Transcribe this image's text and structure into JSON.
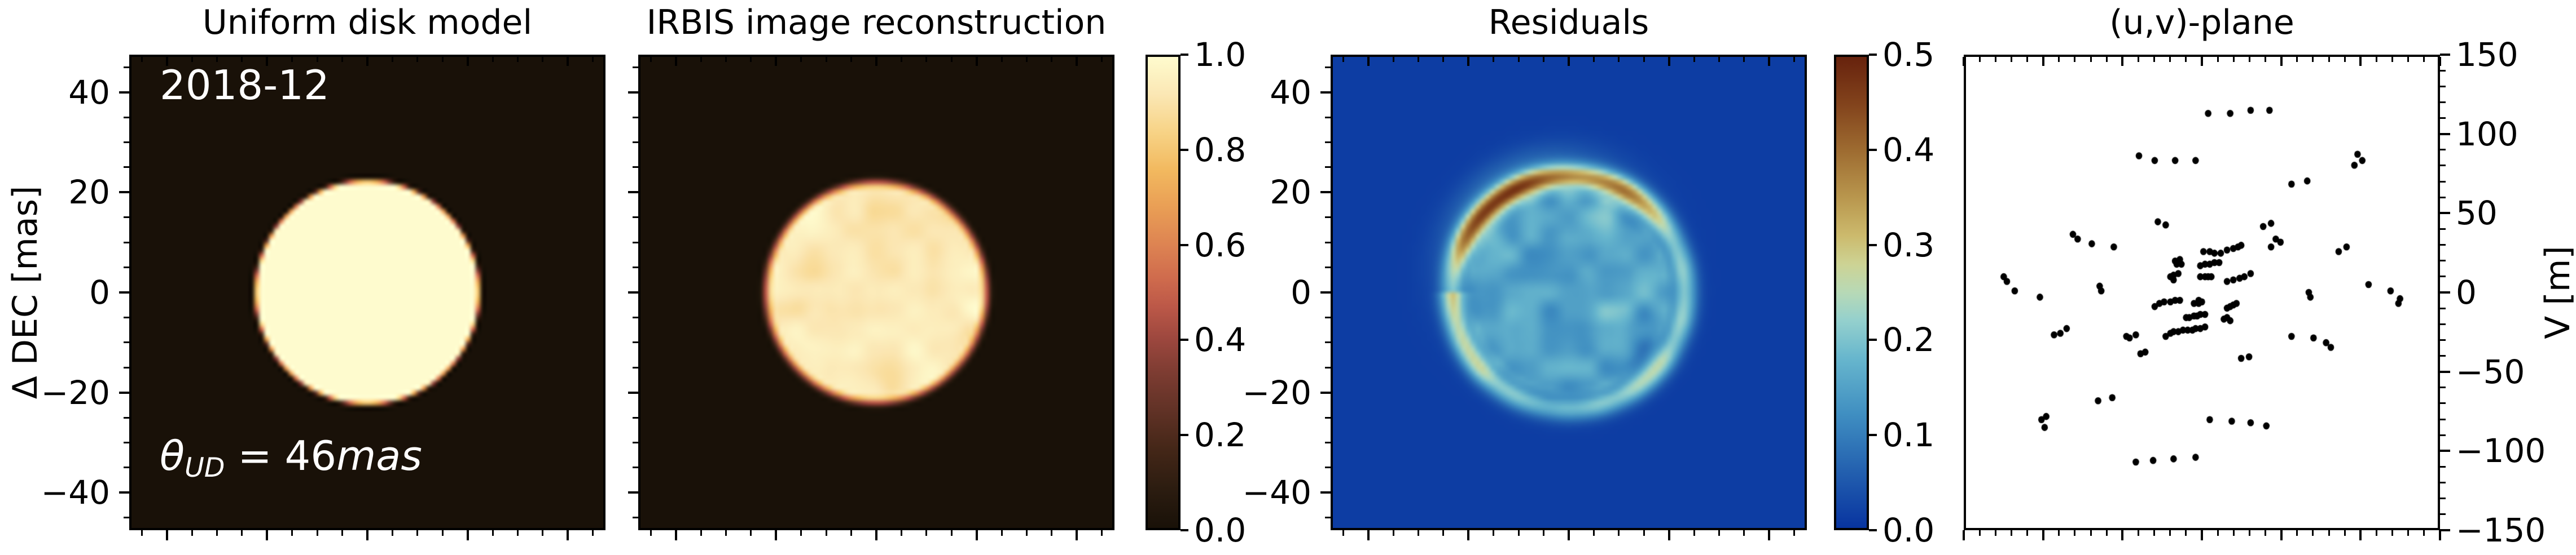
{
  "figure": {
    "background": "#ffffff",
    "text_color": "#000000",
    "annotation_color": "#ffffff",
    "epoch_label": "2018-12",
    "theta_annotation": {
      "symbol": "θ",
      "subscript": "UD",
      "equation": " = ",
      "value": "46",
      "unit": "mas"
    }
  },
  "chart_data": [
    {
      "type": "heatmap",
      "title": "Uniform disk model",
      "ylabel": "Δ DEC [mas]",
      "xlabel": "",
      "xlim": [
        -47.5,
        47.5
      ],
      "ylim": [
        -47.5,
        47.5
      ],
      "xticks": [
        -40,
        -20,
        0,
        20,
        40
      ],
      "yticks": [
        40,
        20,
        0,
        -20,
        -40
      ],
      "minor_tick_step_mas": 5,
      "grid": false,
      "annotations": [
        "2018-12",
        "θ_UD = 46mas"
      ],
      "model": {
        "kind": "uniform disk",
        "epoch": "2018-12",
        "theta_ud_mas": 46,
        "disk_radius_mas": 23,
        "peak_value": 1.0,
        "background_value": 0.0,
        "edge_softness_mas": 1.3
      }
    },
    {
      "type": "heatmap",
      "title": "IRBIS image reconstruction",
      "xlabel": "",
      "xlim": [
        -47.5,
        47.5
      ],
      "ylim": [
        -47.5,
        47.5
      ],
      "xticks": [
        -40,
        -20,
        0,
        20,
        40
      ],
      "yticks": [
        40,
        20,
        0,
        -20,
        -40
      ],
      "minor_tick_step_mas": 5,
      "grid": false,
      "model": {
        "kind": "reconstructed disk",
        "disk_radius_mas": 23.8,
        "edge_softness_mas": 3.1,
        "interior_value_range": [
          0.84,
          1.0
        ]
      },
      "colorbar": {
        "vmin": 0.0,
        "vmax": 1.0,
        "ticks": [
          1.0,
          0.8,
          0.6,
          0.4,
          0.2,
          0.0
        ],
        "colormap_stops": [
          [
            0.0,
            "#191108"
          ],
          [
            0.08,
            "#2b1c10"
          ],
          [
            0.17,
            "#452718"
          ],
          [
            0.25,
            "#613226"
          ],
          [
            0.33,
            "#7d3c32"
          ],
          [
            0.4,
            "#9c473e"
          ],
          [
            0.47,
            "#bc5848"
          ],
          [
            0.53,
            "#cf6b4d"
          ],
          [
            0.6,
            "#dd8352"
          ],
          [
            0.68,
            "#e99e55"
          ],
          [
            0.76,
            "#f2b95f"
          ],
          [
            0.84,
            "#f7d386"
          ],
          [
            0.92,
            "#fbe7b4"
          ],
          [
            1.0,
            "#fefbce"
          ]
        ]
      }
    },
    {
      "type": "heatmap",
      "title": "Residuals",
      "xlabel": "",
      "xlim": [
        -47.5,
        47.5
      ],
      "ylim": [
        -47.5,
        47.5
      ],
      "xticks": [
        -40,
        -20,
        0,
        20,
        40
      ],
      "yticks": [
        40,
        20,
        0,
        -20,
        -40
      ],
      "minor_tick_step_mas": 5,
      "grid": false,
      "model": {
        "kind": "residual ring",
        "ring_radius_mas": 23.3,
        "ring_width_mas": 1.8,
        "ring_peak_value": 0.5,
        "interior_value_range": [
          0.06,
          0.21
        ],
        "background_value": 0.012
      },
      "colorbar": {
        "vmin": 0.0,
        "vmax": 0.5,
        "ticks": [
          0.5,
          0.4,
          0.3,
          0.2,
          0.1,
          0.0
        ],
        "colormap_stops": [
          [
            0.0,
            "#0834a0"
          ],
          [
            0.12,
            "#2360af"
          ],
          [
            0.24,
            "#3f8ec1"
          ],
          [
            0.36,
            "#67b6cd"
          ],
          [
            0.44,
            "#94d0cd"
          ],
          [
            0.5,
            "#b7d9b6"
          ],
          [
            0.56,
            "#cdd394"
          ],
          [
            0.62,
            "#ccba6d"
          ],
          [
            0.7,
            "#b9974e"
          ],
          [
            0.8,
            "#9e6c31"
          ],
          [
            0.9,
            "#82431c"
          ],
          [
            1.0,
            "#67220d"
          ]
        ]
      }
    },
    {
      "type": "scatter",
      "title": "(u,v)-plane",
      "ylabel_right": "V [m]",
      "xlabel": "",
      "xlim": [
        -150,
        150
      ],
      "ylim": [
        -150,
        150
      ],
      "xticks": [
        -150,
        -100,
        -50,
        0,
        50,
        100,
        150
      ],
      "yticks": [
        150,
        100,
        50,
        0,
        -50,
        -100,
        -150
      ],
      "minor_tick_step_m": 10,
      "grid": false,
      "marker_color": "#000000",
      "marker_radius_px": 6.3,
      "points": [
        [
          4,
          114
        ],
        [
          18,
          114
        ],
        [
          31,
          116
        ],
        [
          43,
          116
        ],
        [
          -40,
          87
        ],
        [
          -30,
          84
        ],
        [
          -17,
          84
        ],
        [
          -4,
          84
        ],
        [
          99,
          88
        ],
        [
          102,
          84
        ],
        [
          97,
          81
        ],
        [
          57,
          69
        ],
        [
          67,
          71
        ],
        [
          39,
          42
        ],
        [
          44,
          44
        ],
        [
          44,
          29
        ],
        [
          47,
          34
        ],
        [
          50,
          32
        ],
        [
          -82,
          37
        ],
        [
          -79,
          34
        ],
        [
          -70,
          31
        ],
        [
          -56,
          29
        ],
        [
          -28,
          45
        ],
        [
          -23,
          43
        ],
        [
          1,
          26
        ],
        [
          5,
          26
        ],
        [
          8,
          25
        ],
        [
          12,
          25
        ],
        [
          16,
          27
        ],
        [
          20,
          28
        ],
        [
          23,
          29
        ],
        [
          25,
          30
        ],
        [
          -1,
          17
        ],
        [
          2,
          18
        ],
        [
          5,
          18
        ],
        [
          8,
          19
        ],
        [
          11,
          19
        ],
        [
          -17,
          20
        ],
        [
          -14,
          21
        ],
        [
          -16,
          18
        ],
        [
          -13,
          18
        ],
        [
          -1,
          10
        ],
        [
          2,
          10
        ],
        [
          4,
          10
        ],
        [
          6,
          10
        ],
        [
          16,
          7
        ],
        [
          20,
          8
        ],
        [
          24,
          9
        ],
        [
          27,
          10
        ],
        [
          31,
          12
        ],
        [
          -20,
          10
        ],
        [
          -18,
          11
        ],
        [
          -15,
          12
        ],
        [
          -18,
          8
        ],
        [
          -30,
          -9
        ],
        [
          -27,
          -7
        ],
        [
          -24,
          -6
        ],
        [
          -20,
          -6
        ],
        [
          -17,
          -5
        ],
        [
          -14,
          -5
        ],
        [
          -5,
          -7
        ],
        [
          -2,
          -7
        ],
        [
          0,
          -6
        ],
        [
          -2,
          -5
        ],
        [
          16,
          -10
        ],
        [
          18,
          -9
        ],
        [
          20,
          -8
        ],
        [
          22,
          -7
        ],
        [
          -10,
          -16
        ],
        [
          -8,
          -16
        ],
        [
          -5,
          -15
        ],
        [
          -3,
          -15
        ],
        [
          -1,
          -14
        ],
        [
          2,
          -14
        ],
        [
          14,
          -17
        ],
        [
          16,
          -16
        ],
        [
          18,
          -18
        ],
        [
          -23,
          -28
        ],
        [
          -20,
          -26
        ],
        [
          -18,
          -25
        ],
        [
          -15,
          -25
        ],
        [
          -12,
          -24
        ],
        [
          -9,
          -24
        ],
        [
          -6,
          -24
        ],
        [
          -4,
          -23
        ],
        [
          -1,
          -23
        ],
        [
          2,
          -22
        ],
        [
          -126,
          10
        ],
        [
          -124,
          7
        ],
        [
          -119,
          1
        ],
        [
          -103,
          -3
        ],
        [
          -94,
          -27
        ],
        [
          -90,
          -26
        ],
        [
          -86,
          -23
        ],
        [
          -65,
          4
        ],
        [
          -64,
          1
        ],
        [
          -48,
          -28
        ],
        [
          -46,
          -29
        ],
        [
          -42,
          -27
        ],
        [
          -39,
          -39
        ],
        [
          -36,
          -38
        ],
        [
          68,
          0
        ],
        [
          69,
          -3
        ],
        [
          106,
          5
        ],
        [
          120,
          1
        ],
        [
          126,
          -4
        ],
        [
          125,
          -7
        ],
        [
          87,
          26
        ],
        [
          92,
          29
        ],
        [
          57,
          -28
        ],
        [
          71,
          -29
        ],
        [
          79,
          -32
        ],
        [
          82,
          -35
        ],
        [
          25,
          -42
        ],
        [
          30,
          -41
        ],
        [
          -102,
          -81
        ],
        [
          -99,
          -79
        ],
        [
          -100,
          -86
        ],
        [
          -66,
          -69
        ],
        [
          -57,
          -67
        ],
        [
          -42,
          -108
        ],
        [
          -31,
          -107
        ],
        [
          -18,
          -106
        ],
        [
          -4,
          -105
        ],
        [
          5,
          -81
        ],
        [
          19,
          -82
        ],
        [
          31,
          -83
        ],
        [
          41,
          -85
        ]
      ]
    }
  ]
}
